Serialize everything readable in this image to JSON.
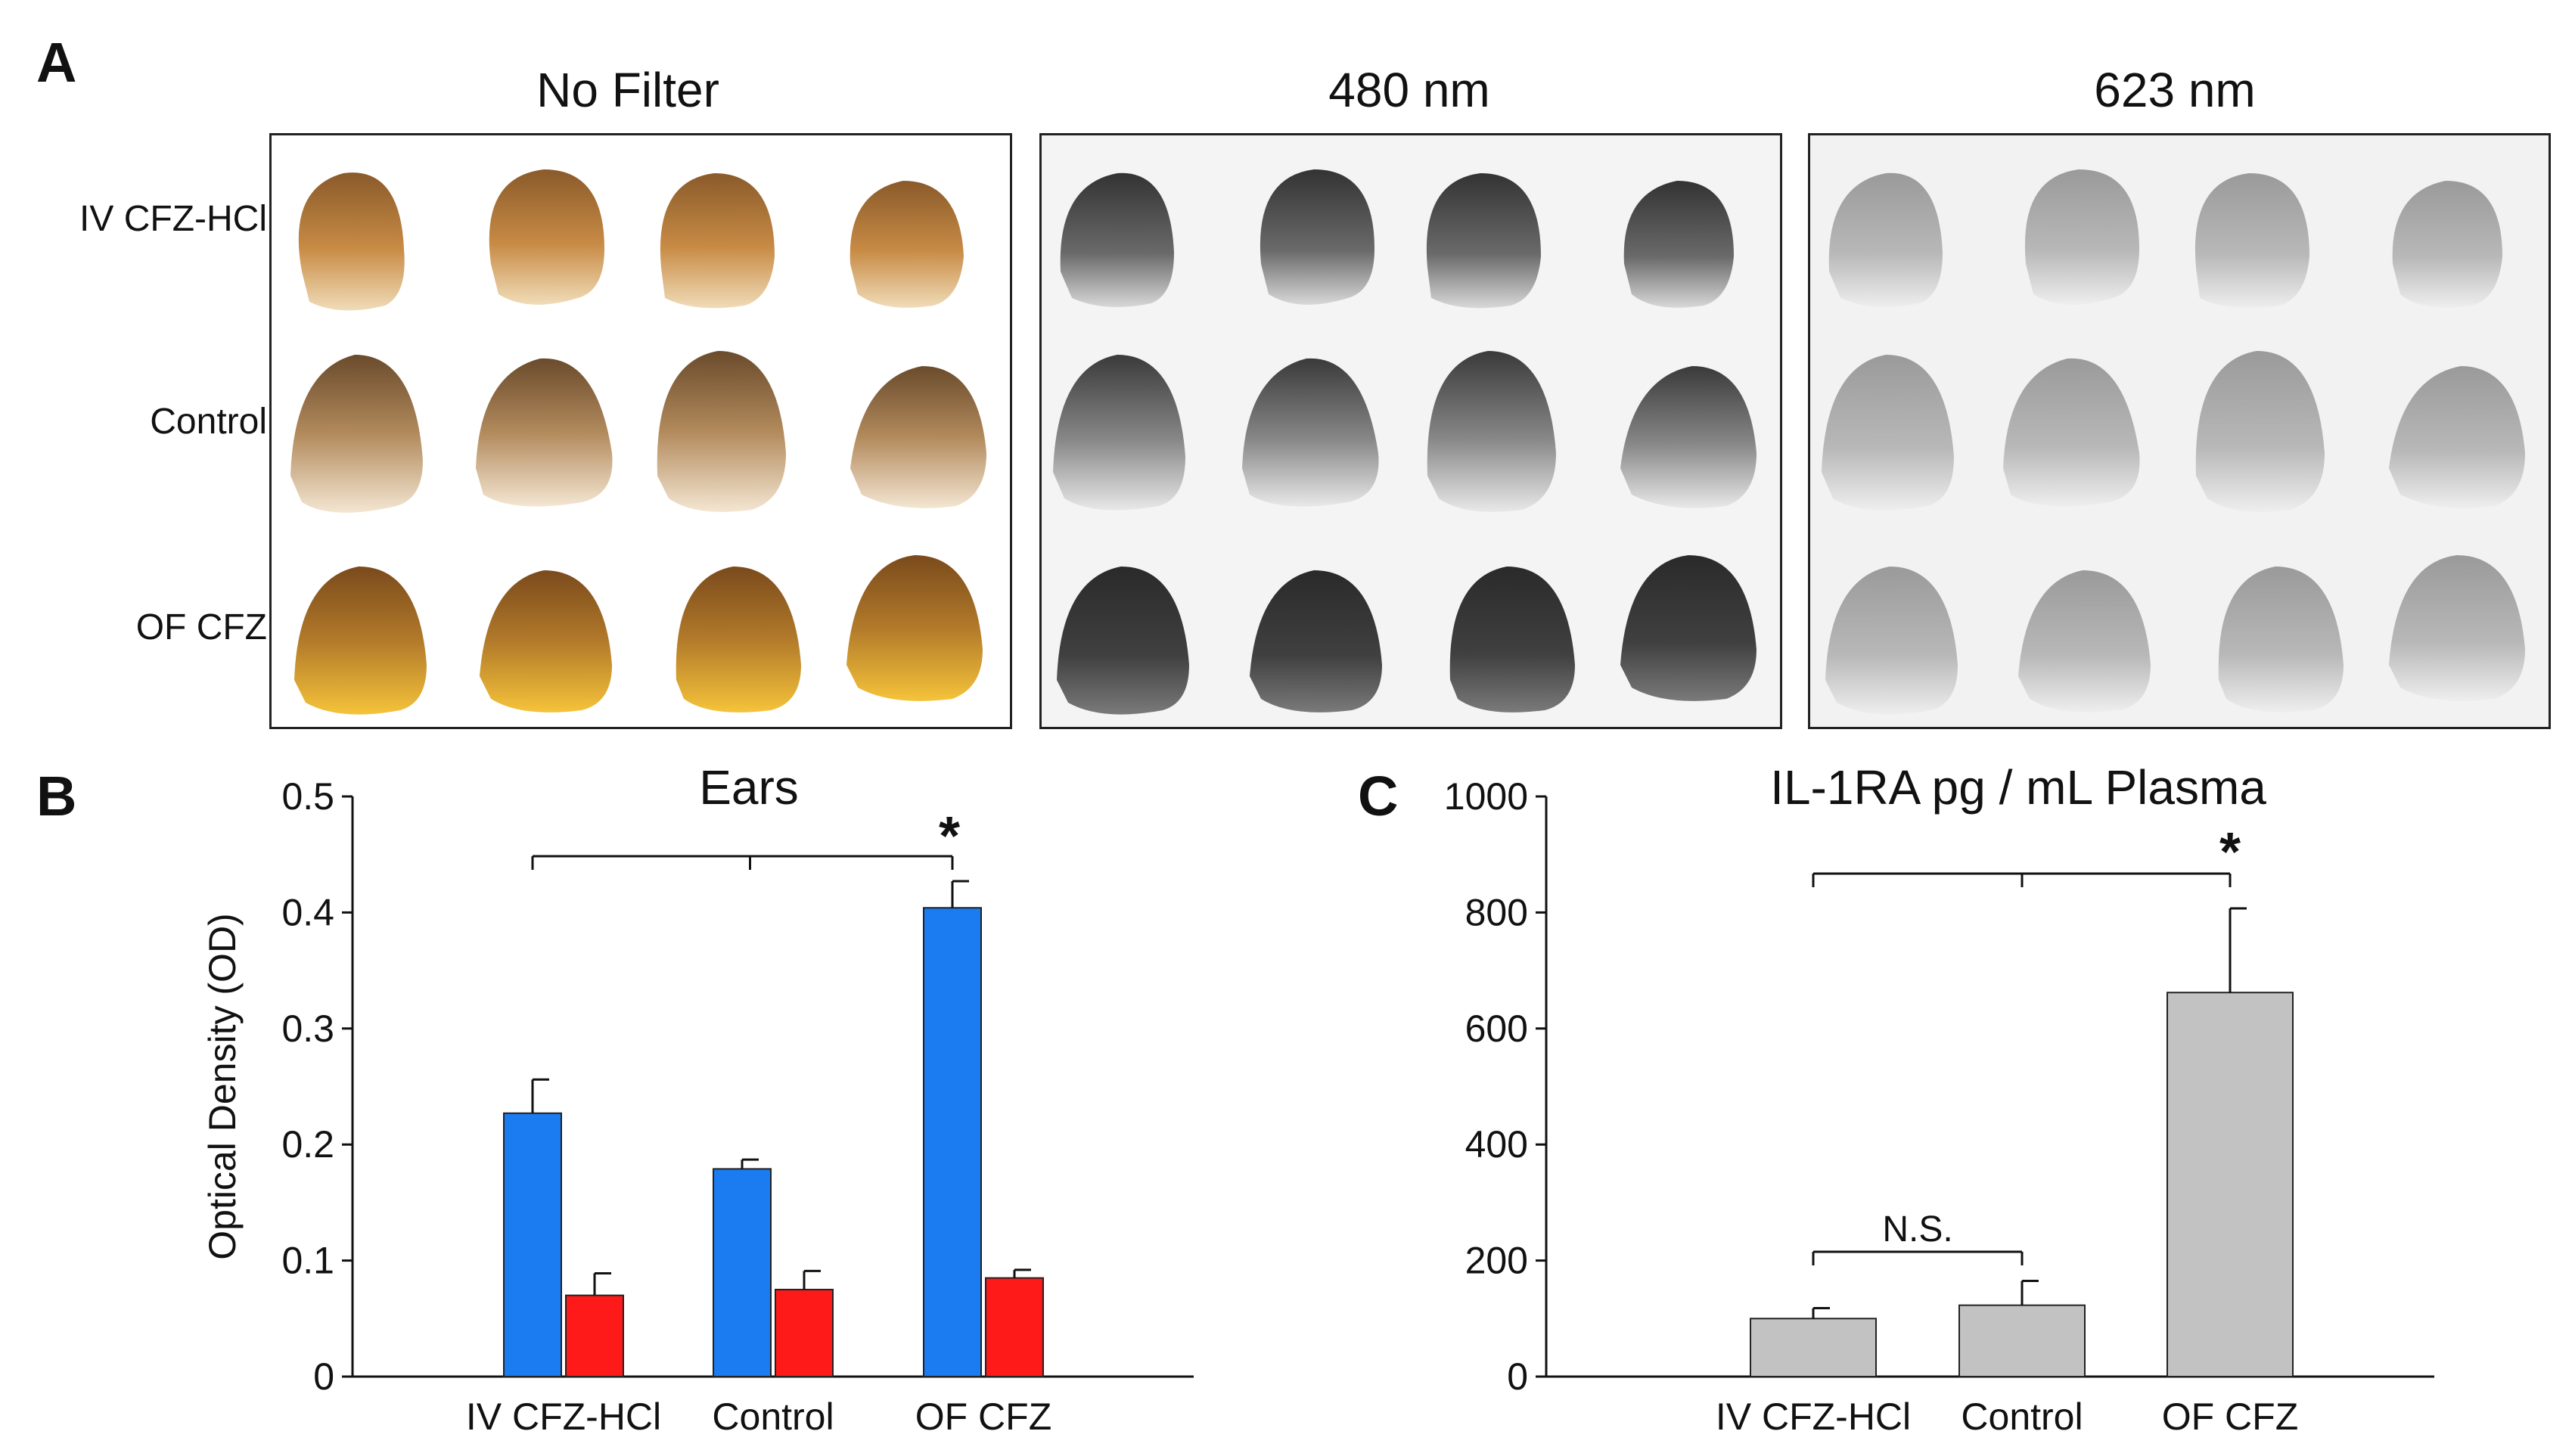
{
  "panel_letters": {
    "a": "A",
    "b": "B",
    "c": "C"
  },
  "panel_a": {
    "filters": [
      "No Filter",
      "480 nm",
      "623 nm"
    ],
    "rows": [
      "IV CFZ-HCl",
      "Control",
      "OF CFZ"
    ]
  },
  "chart_data": [
    {
      "type": "bar",
      "title": "Ears",
      "ylabel": "Optical Density (OD)",
      "xlabel": "",
      "categories": [
        "IV CFZ-HCl",
        "Control",
        "OF CFZ"
      ],
      "series": [
        {
          "values": [
            0.227,
            0.179,
            0.404
          ],
          "errors": [
            0.029,
            0.008,
            0.023
          ],
          "color": "#1a7cf0"
        },
        {
          "values": [
            0.07,
            0.075,
            0.085
          ],
          "errors": [
            0.019,
            0.016,
            0.007
          ],
          "color": "#ff1a1a"
        }
      ],
      "ylim": [
        0,
        0.5
      ],
      "yticks": [
        "0",
        "0.1",
        "0.2",
        "0.3",
        "0.4",
        "0.5"
      ],
      "significance": [
        {
          "marker": "*"
        }
      ],
      "grid": false
    },
    {
      "type": "bar",
      "title": "IL-1RA pg / mL Plasma",
      "ylabel": "",
      "xlabel": "",
      "categories": [
        "IV CFZ-HCl",
        "Control",
        "OF CFZ"
      ],
      "series": [
        {
          "values": [
            100,
            123,
            662
          ],
          "errors": [
            18,
            42,
            145
          ],
          "color": "#c2c2c2"
        }
      ],
      "ylim": [
        0,
        1000
      ],
      "yticks": [
        "0",
        "200",
        "400",
        "600",
        "800",
        "1000"
      ],
      "significance": [
        {
          "marker": "*"
        },
        {
          "marker": "N.S."
        }
      ],
      "grid": false
    }
  ]
}
